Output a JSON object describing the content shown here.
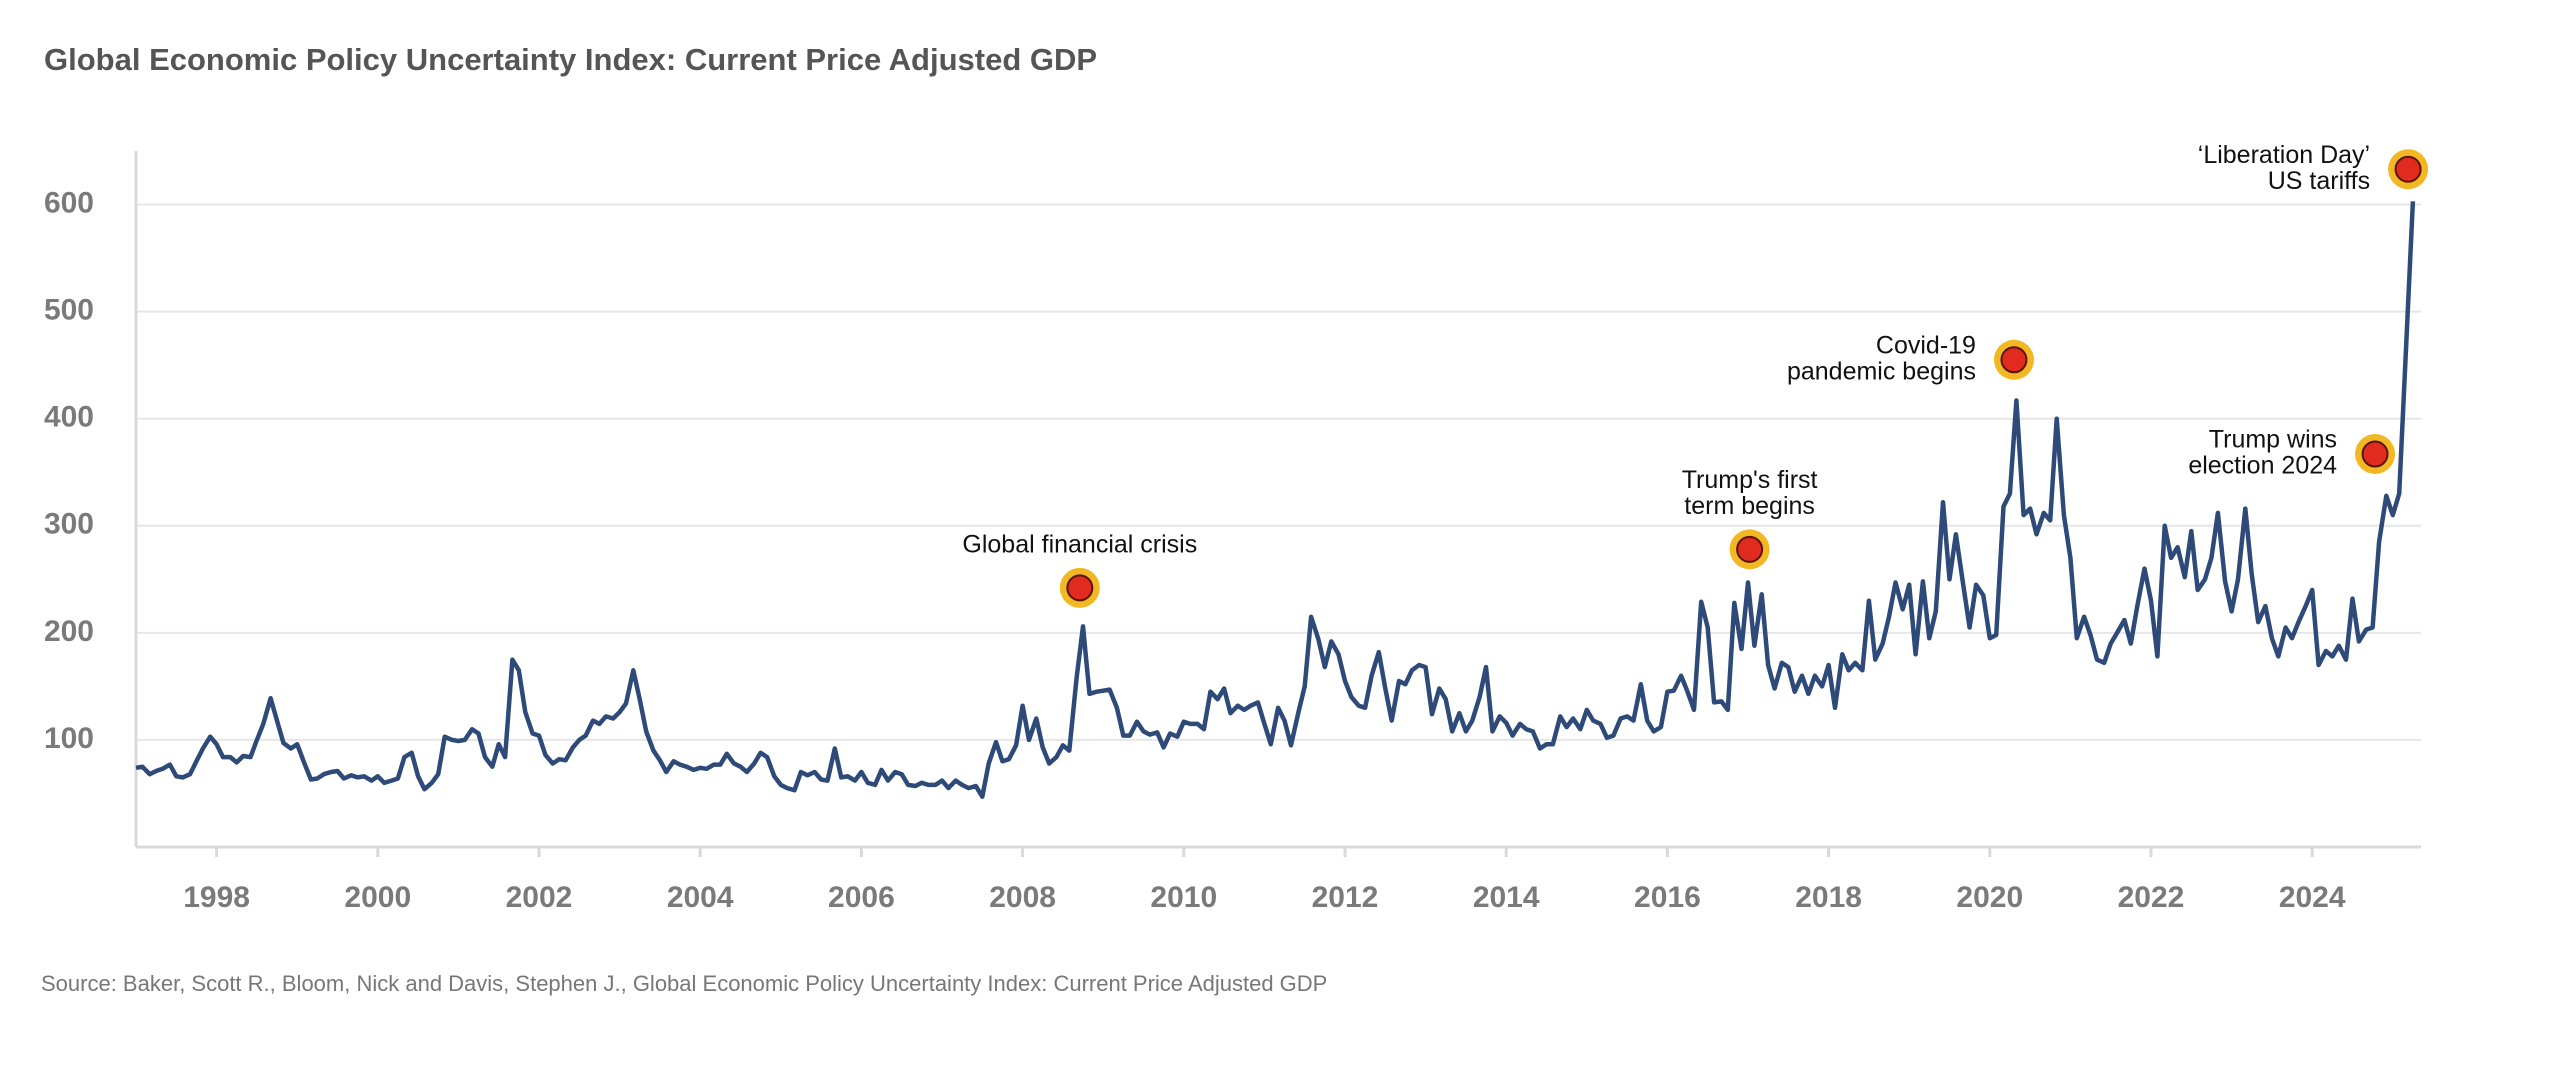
{
  "chart_data": {
    "type": "line",
    "title": "Global Economic Policy Uncertainty Index: Current Price Adjusted GDP",
    "source": "Source: Baker, Scott R., Bloom, Nick and Davis, Stephen J., Global Economic Policy Uncertainty Index: Current Price Adjusted GDP",
    "color": "#2e4a78",
    "xlim": [
      1997,
      2025.35
    ],
    "xticks": [
      1998,
      2000,
      2002,
      2004,
      2006,
      2008,
      2010,
      2012,
      2014,
      2016,
      2018,
      2020,
      2022,
      2024
    ],
    "ylim": [
      0,
      650
    ],
    "yticks": [
      100,
      200,
      300,
      400,
      500,
      600
    ],
    "grid": true,
    "x": [
      1997,
      1997.08,
      1997.17,
      1997.25,
      1997.33,
      1997.42,
      1997.5,
      1997.58,
      1997.67,
      1997.75,
      1997.83,
      1997.92,
      1998,
      1998.08,
      1998.17,
      1998.25,
      1998.33,
      1998.42,
      1998.5,
      1998.58,
      1998.67,
      1998.75,
      1998.83,
      1998.92,
      1999,
      1999.08,
      1999.17,
      1999.25,
      1999.33,
      1999.42,
      1999.5,
      1999.58,
      1999.67,
      1999.75,
      1999.83,
      1999.92,
      2000,
      2000.08,
      2000.17,
      2000.25,
      2000.33,
      2000.42,
      2000.5,
      2000.58,
      2000.67,
      2000.75,
      2000.83,
      2000.92,
      2001,
      2001.08,
      2001.17,
      2001.25,
      2001.33,
      2001.42,
      2001.5,
      2001.58,
      2001.67,
      2001.75,
      2001.83,
      2001.92,
      2002,
      2002.08,
      2002.17,
      2002.25,
      2002.33,
      2002.42,
      2002.5,
      2002.58,
      2002.67,
      2002.75,
      2002.83,
      2002.92,
      2003,
      2003.08,
      2003.17,
      2003.25,
      2003.33,
      2003.42,
      2003.5,
      2003.58,
      2003.67,
      2003.75,
      2003.83,
      2003.92,
      2004,
      2004.08,
      2004.17,
      2004.25,
      2004.33,
      2004.42,
      2004.5,
      2004.58,
      2004.67,
      2004.75,
      2004.83,
      2004.92,
      2005,
      2005.08,
      2005.17,
      2005.25,
      2005.33,
      2005.42,
      2005.5,
      2005.58,
      2005.67,
      2005.75,
      2005.83,
      2005.92,
      2006,
      2006.08,
      2006.17,
      2006.25,
      2006.33,
      2006.42,
      2006.5,
      2006.58,
      2006.67,
      2006.75,
      2006.83,
      2006.92,
      2007,
      2007.08,
      2007.17,
      2007.25,
      2007.33,
      2007.42,
      2007.5,
      2007.58,
      2007.67,
      2007.75,
      2007.83,
      2007.92,
      2008,
      2008.08,
      2008.17,
      2008.25,
      2008.33,
      2008.42,
      2008.5,
      2008.58,
      2008.67,
      2008.75,
      2008.83,
      2008.92,
      2009,
      2009.08,
      2009.17,
      2009.25,
      2009.33,
      2009.42,
      2009.5,
      2009.58,
      2009.67,
      2009.75,
      2009.83,
      2009.92,
      2010,
      2010.08,
      2010.17,
      2010.25,
      2010.33,
      2010.42,
      2010.5,
      2010.58,
      2010.67,
      2010.75,
      2010.83,
      2010.92,
      2011,
      2011.08,
      2011.17,
      2011.25,
      2011.33,
      2011.42,
      2011.5,
      2011.58,
      2011.67,
      2011.75,
      2011.83,
      2011.92,
      2012,
      2012.08,
      2012.17,
      2012.25,
      2012.33,
      2012.42,
      2012.5,
      2012.58,
      2012.67,
      2012.75,
      2012.83,
      2012.92,
      2013,
      2013.08,
      2013.17,
      2013.25,
      2013.33,
      2013.42,
      2013.5,
      2013.58,
      2013.67,
      2013.75,
      2013.83,
      2013.92,
      2014,
      2014.08,
      2014.17,
      2014.25,
      2014.33,
      2014.42,
      2014.5,
      2014.58,
      2014.67,
      2014.75,
      2014.83,
      2014.92,
      2015,
      2015.08,
      2015.17,
      2015.25,
      2015.33,
      2015.42,
      2015.5,
      2015.58,
      2015.67,
      2015.75,
      2015.83,
      2015.92,
      2016,
      2016.08,
      2016.17,
      2016.25,
      2016.33,
      2016.42,
      2016.5,
      2016.58,
      2016.67,
      2016.75,
      2016.83,
      2016.92,
      2017,
      2017.08,
      2017.17,
      2017.25,
      2017.33,
      2017.42,
      2017.5,
      2017.58,
      2017.67,
      2017.75,
      2017.83,
      2017.92,
      2018,
      2018.08,
      2018.17,
      2018.25,
      2018.33,
      2018.42,
      2018.5,
      2018.58,
      2018.67,
      2018.75,
      2018.83,
      2018.92,
      2019,
      2019.08,
      2019.17,
      2019.25,
      2019.33,
      2019.42,
      2019.5,
      2019.58,
      2019.67,
      2019.75,
      2019.83,
      2019.92,
      2020,
      2020.08,
      2020.17,
      2020.25,
      2020.33,
      2020.42,
      2020.5,
      2020.58,
      2020.67,
      2020.75,
      2020.83,
      2020.92,
      2021,
      2021.08,
      2021.17,
      2021.25,
      2021.33,
      2021.42,
      2021.5,
      2021.58,
      2021.67,
      2021.75,
      2021.83,
      2021.92,
      2022,
      2022.08,
      2022.17,
      2022.25,
      2022.33,
      2022.42,
      2022.5,
      2022.58,
      2022.67,
      2022.75,
      2022.83,
      2022.92,
      2023,
      2023.08,
      2023.17,
      2023.25,
      2023.33,
      2023.42,
      2023.5,
      2023.58,
      2023.67,
      2023.75,
      2023.83,
      2023.92,
      2024,
      2024.08,
      2024.17,
      2024.25,
      2024.33,
      2024.42,
      2024.5,
      2024.58,
      2024.67,
      2024.75,
      2024.83,
      2024.92,
      2025,
      2025.08,
      2025.17,
      2025.25
    ],
    "values": [
      74,
      75,
      68,
      71,
      73,
      77,
      66,
      65,
      68,
      80,
      92,
      103,
      96,
      84,
      84,
      79,
      85,
      84,
      100,
      115,
      139,
      118,
      97,
      92,
      96,
      80,
      63,
      64,
      68,
      70,
      71,
      64,
      67,
      65,
      66,
      62,
      66,
      60,
      62,
      64,
      84,
      88,
      66,
      54,
      60,
      68,
      103,
      100,
      99,
      100,
      110,
      106,
      84,
      75,
      96,
      84,
      175,
      165,
      126,
      106,
      104,
      86,
      78,
      82,
      81,
      93,
      100,
      104,
      118,
      115,
      122,
      120,
      126,
      134,
      165,
      138,
      108,
      90,
      81,
      70,
      80,
      77,
      75,
      72,
      74,
      73,
      77,
      77,
      87,
      78,
      75,
      70,
      78,
      88,
      84,
      66,
      58,
      55,
      53,
      70,
      67,
      70,
      63,
      62,
      92,
      65,
      66,
      62,
      70,
      60,
      58,
      72,
      62,
      70,
      68,
      58,
      57,
      60,
      58,
      58,
      62,
      55,
      62,
      58,
      55,
      57,
      47,
      78,
      98,
      80,
      82,
      95,
      132,
      100,
      120,
      93,
      78,
      84,
      95,
      90,
      158,
      206,
      143,
      145,
      146,
      147,
      130,
      104,
      104,
      117,
      108,
      105,
      107,
      93,
      106,
      103,
      117,
      115,
      115,
      110,
      145,
      138,
      148,
      125,
      132,
      128,
      132,
      135,
      115,
      96,
      130,
      118,
      95,
      125,
      150,
      215,
      194,
      168,
      192,
      180,
      155,
      140,
      132,
      130,
      160,
      182,
      148,
      118,
      155,
      152,
      165,
      170,
      168,
      124,
      148,
      138,
      108,
      125,
      108,
      118,
      140,
      168,
      108,
      122,
      116,
      104,
      115,
      110,
      108,
      92,
      96,
      96,
      122,
      112,
      120,
      110,
      128,
      118,
      115,
      102,
      104,
      120,
      122,
      118,
      152,
      118,
      108,
      112,
      145,
      146,
      160,
      145,
      128,
      229,
      205,
      135,
      136,
      128,
      228,
      185,
      247,
      188,
      236,
      170,
      148,
      172,
      168,
      145,
      160,
      143,
      160,
      150,
      170,
      130,
      180,
      165,
      172,
      165,
      230,
      175,
      190,
      215,
      247,
      222,
      245,
      180,
      248,
      195,
      220,
      322,
      250,
      292,
      245,
      205,
      245,
      235,
      195,
      198,
      318,
      330,
      417,
      310,
      316,
      292,
      312,
      305,
      400,
      310,
      270,
      195,
      215,
      198,
      175,
      172,
      190,
      200,
      212,
      190,
      225,
      260,
      230,
      178,
      300,
      270,
      280,
      252,
      295,
      240,
      250,
      270,
      312,
      248,
      220,
      250,
      316,
      255,
      210,
      225,
      195,
      178,
      205,
      195,
      210,
      225,
      240,
      170,
      183,
      178,
      188,
      175,
      232,
      192,
      203,
      205,
      285,
      328,
      310,
      330,
      475,
      603
    ],
    "annotations": [
      {
        "lines": [
          "Global financial crisis"
        ],
        "x": 2008.71,
        "y": 242,
        "placement": "above"
      },
      {
        "lines": [
          "Trump's first",
          "term begins"
        ],
        "x": 2017.02,
        "y": 278,
        "placement": "above"
      },
      {
        "lines": [
          "Covid-19",
          "pandemic begins"
        ],
        "x": 2020.3,
        "y": 455,
        "placement": "left"
      },
      {
        "lines": [
          "Trump wins",
          "election 2024"
        ],
        "x": 2024.78,
        "y": 367,
        "placement": "left"
      },
      {
        "lines": [
          "‘Liberation Day’",
          "US tariffs"
        ],
        "x": 2025.19,
        "y": 633,
        "placement": "left"
      }
    ]
  }
}
